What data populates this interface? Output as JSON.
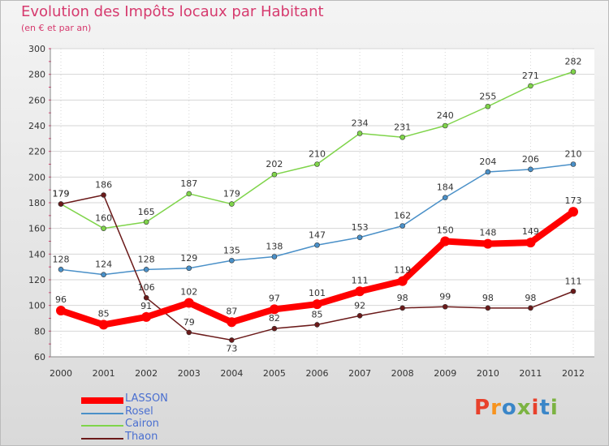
{
  "header": {
    "title": "Evolution des Impôts locaux par Habitant",
    "subtitle": "(en € et par an)"
  },
  "logo": {
    "letters": [
      "P",
      "r",
      "o",
      "x",
      "i",
      "t",
      "i"
    ],
    "colors": [
      "#e8412c",
      "#f7931e",
      "#3a86c8",
      "#7cb342",
      "#e8412c",
      "#3a86c8",
      "#7cb342"
    ]
  },
  "chart_data": {
    "type": "line",
    "title": "Evolution des Impôts locaux par Habitant",
    "subtitle": "(en € et par an)",
    "xlabel": "",
    "ylabel": "",
    "x": [
      2000,
      2001,
      2002,
      2003,
      2004,
      2005,
      2006,
      2007,
      2008,
      2009,
      2010,
      2011,
      2012
    ],
    "ylim": [
      60,
      300
    ],
    "yticks": [
      60,
      80,
      100,
      120,
      140,
      160,
      180,
      200,
      220,
      240,
      260,
      280,
      300
    ],
    "grid": true,
    "legend_position": "bottom-left",
    "series": [
      {
        "name": "LASSON",
        "color": "#ff0000",
        "values": [
          96,
          85,
          91,
          102,
          87,
          97,
          101,
          111,
          119,
          150,
          148,
          149,
          173
        ]
      },
      {
        "name": "Rosel",
        "color": "#4a90c8",
        "values": [
          128,
          124,
          128,
          129,
          135,
          138,
          147,
          153,
          162,
          184,
          204,
          206,
          210
        ]
      },
      {
        "name": "Cairon",
        "color": "#7fd44a",
        "values": [
          179,
          160,
          165,
          187,
          179,
          202,
          210,
          234,
          231,
          240,
          255,
          271,
          282
        ]
      },
      {
        "name": "Thaon",
        "color": "#6b1a1a",
        "values": [
          179,
          186,
          106,
          79,
          73,
          82,
          85,
          92,
          98,
          99,
          98,
          98,
          111
        ]
      }
    ]
  }
}
